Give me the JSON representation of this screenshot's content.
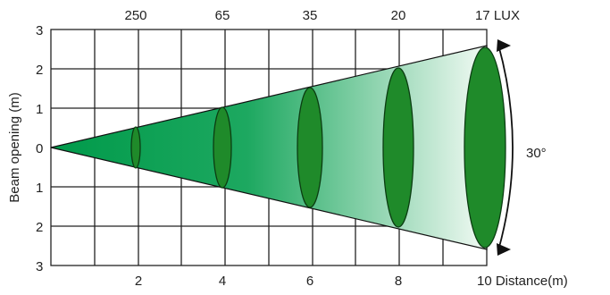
{
  "title": "",
  "lux_values": [
    "250",
    "65",
    "35",
    "20",
    "17 LUX"
  ],
  "y_label": "Beam opening (m)",
  "y_ticks": [
    "3",
    "2",
    "1",
    "0",
    "1",
    "2",
    "3"
  ],
  "x_ticks": [
    "2",
    "4",
    "6",
    "8"
  ],
  "x_end_label": "10 Distance(m)",
  "angle_label": "30°",
  "colors": {
    "beam_dark": "#009a4a",
    "beam_light": "#f2faf4",
    "ellipse": "#1f8a2a",
    "grid": "#222222"
  },
  "beam_diagram": {
    "x_range": [
      0,
      10
    ],
    "y_range": [
      -3,
      3
    ],
    "beam_angle_deg": 30,
    "distances_m": [
      2,
      4,
      6,
      8,
      10
    ],
    "beam_half_width_m": [
      0.5,
      1,
      1.5,
      2,
      2.6
    ],
    "illuminance_lux": [
      250,
      65,
      35,
      20,
      17
    ]
  }
}
